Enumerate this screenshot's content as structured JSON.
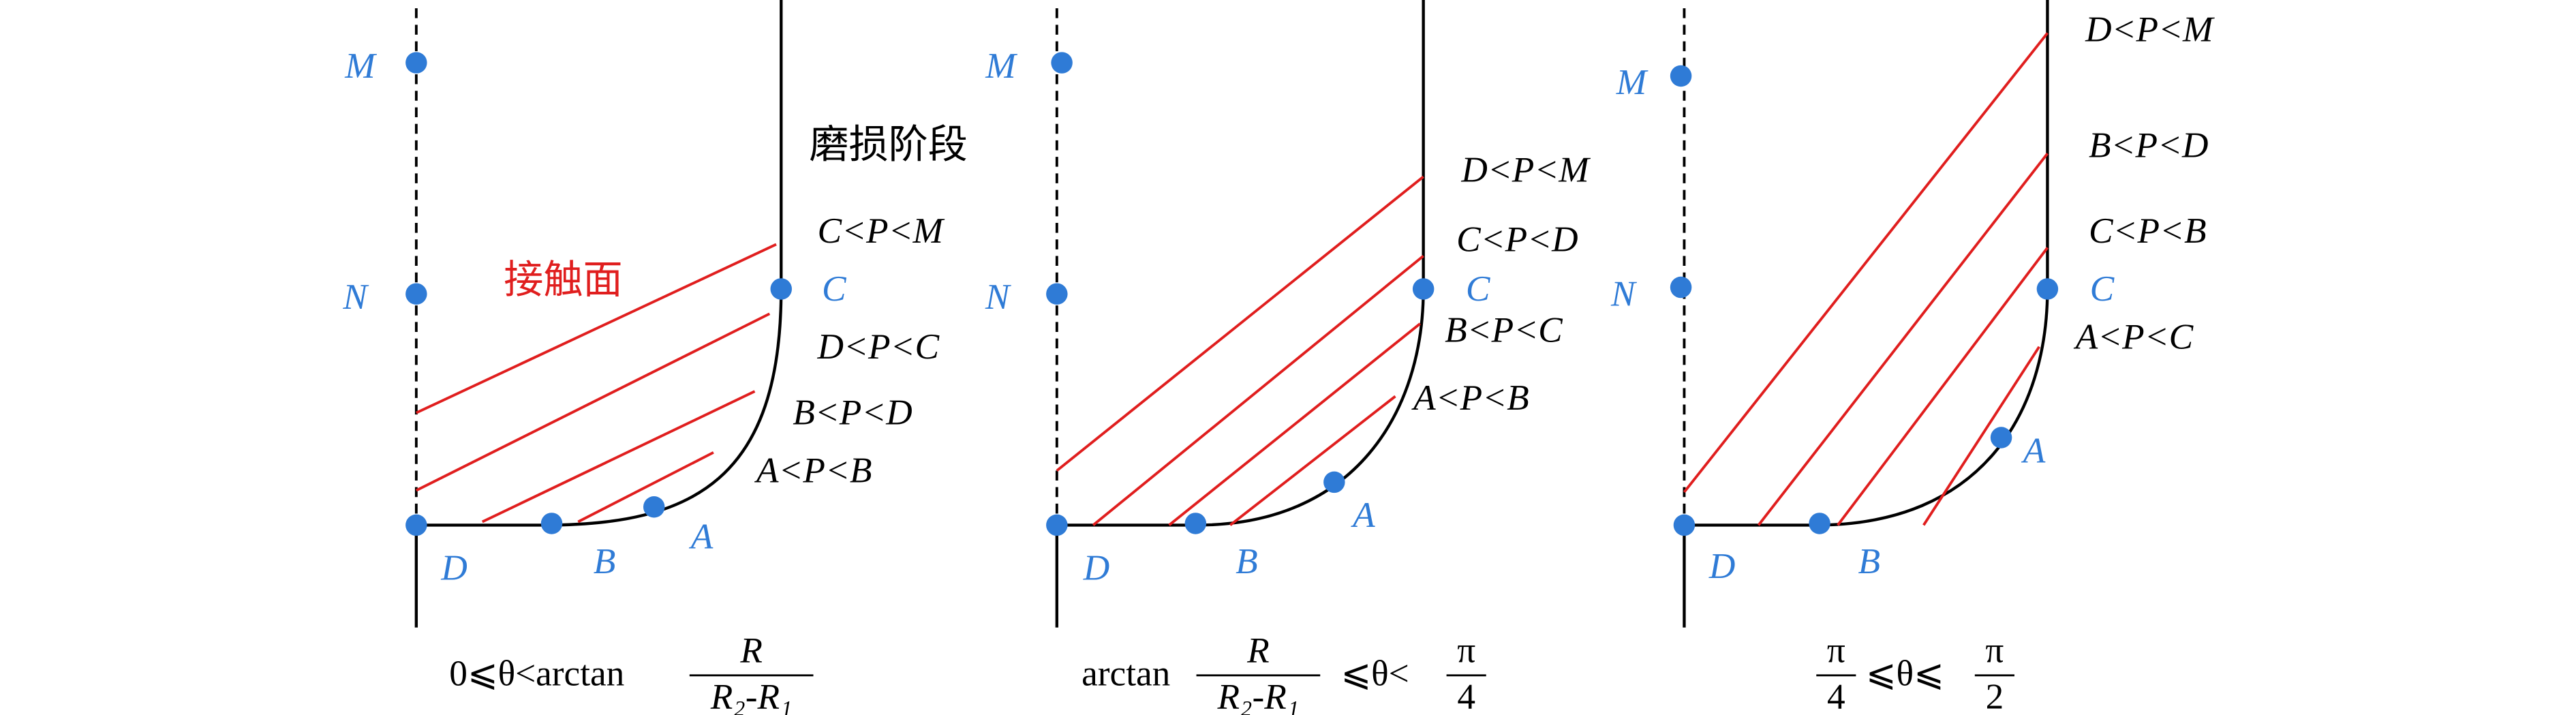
{
  "panels": [
    {
      "points": [
        "M",
        "N",
        "C",
        "D",
        "B",
        "A"
      ],
      "stage_label": "磨损阶段",
      "surface_label": "接触面",
      "ranges": [
        "C<P<M",
        "D<P<C",
        "B<P<D",
        "A<P<B"
      ],
      "caption": [
        {
          "text": "0⩽θ<arctan"
        },
        {
          "num": "R",
          "den": "R₂-R₁"
        }
      ]
    },
    {
      "points": [
        "M",
        "N",
        "C",
        "D",
        "B",
        "A"
      ],
      "ranges": [
        "D<P<M",
        "C<P<D",
        "B<P<C",
        "A<P<B"
      ],
      "caption": [
        {
          "text": "arctan"
        },
        {
          "num": "R",
          "den": "R₂-R₁"
        },
        {
          "text": "⩽θ<"
        },
        {
          "num": "π",
          "den": "4"
        }
      ]
    },
    {
      "points": [
        "M",
        "N",
        "C",
        "D",
        "B",
        "A"
      ],
      "ranges": [
        "D<P<M",
        "B<P<D",
        "C<P<B",
        "A<P<C"
      ],
      "caption": [
        {
          "num": "π",
          "den": "4"
        },
        {
          "text": "⩽θ⩽"
        },
        {
          "num": "π",
          "den": "2"
        }
      ]
    }
  ]
}
